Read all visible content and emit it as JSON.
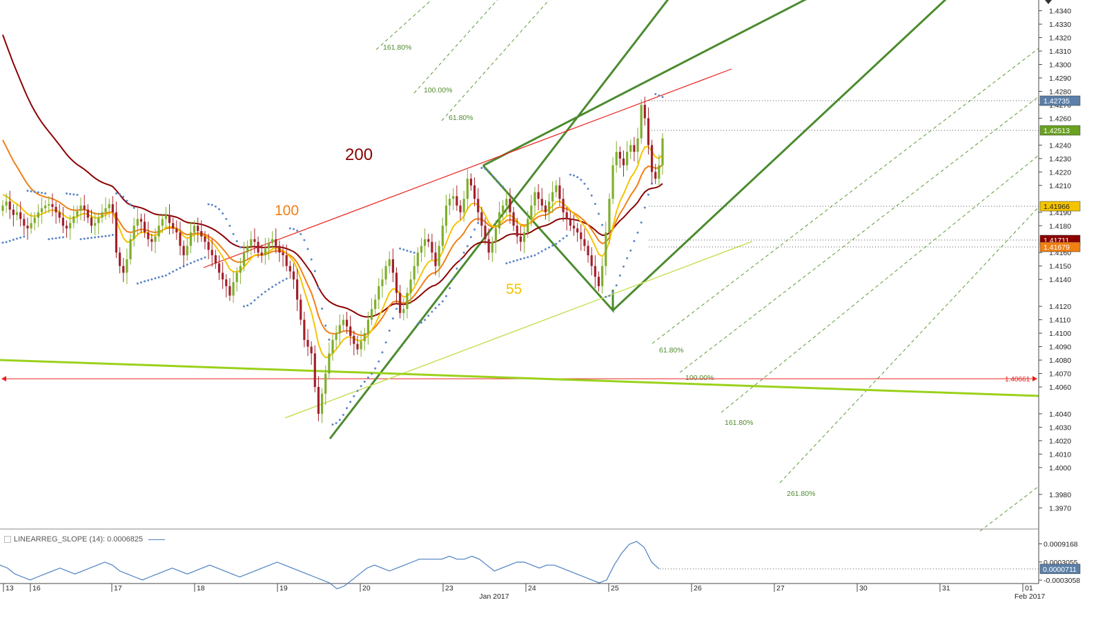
{
  "chart_data": {
    "type": "candlestick",
    "title": "",
    "x_axis": {
      "tick_labels": [
        "13",
        "16",
        "17",
        "18",
        "19",
        "20",
        "23",
        "24",
        "25",
        "26",
        "27",
        "30",
        "31",
        "01"
      ],
      "month_labels": [
        "Jan 2017",
        "Feb 2017"
      ]
    },
    "y_axis": {
      "range": [
        1.3964,
        1.4348
      ],
      "tick_labels": [
        "1.4340",
        "1.4330",
        "1.4320",
        "1.4310",
        "1.4300",
        "1.4290",
        "1.4280",
        "1.4270",
        "1.4260",
        "1.4240",
        "1.4230",
        "1.4220",
        "1.4210",
        "1.4190",
        "1.4180",
        "1.4160",
        "1.4150",
        "1.4140",
        "1.4120",
        "1.4110",
        "1.4100",
        "1.4090",
        "1.4080",
        "1.4070",
        "1.4060",
        "1.4040",
        "1.4030",
        "1.4020",
        "1.4010",
        "1.4000",
        "1.3980",
        "1.3970"
      ]
    },
    "price_badges": [
      {
        "label": "1.42735",
        "value": 1.42735,
        "color": "#5b7fa8"
      },
      {
        "label": "1.42513",
        "value": 1.42513,
        "color": "#6aa121"
      },
      {
        "label": "1.41966",
        "value": 1.41966,
        "color": "#f5c400"
      },
      {
        "label": "1.41711",
        "value": 1.41711,
        "color": "#8b0000"
      },
      {
        "label": "1.41679",
        "value": 1.41679,
        "color": "#f07f14"
      }
    ],
    "horizontal_line": {
      "label": "1.40661",
      "value": 1.40661,
      "color": "#e8201c"
    },
    "moving_average_labels": [
      {
        "text": "200",
        "period": 200,
        "color": "#8b0000"
      },
      {
        "text": "100",
        "period": 100,
        "color": "#f07f14"
      },
      {
        "text": "55",
        "period": 55,
        "color": "#f5c400"
      }
    ],
    "fibonacci_labels": [
      "161.80%",
      "100.00%",
      "61.80%",
      "61.80%",
      "100.00%",
      "161.80%",
      "261.80%"
    ],
    "candle_closes": [
      1.4195,
      1.4198,
      1.4192,
      1.4188,
      1.419,
      1.4185,
      1.418,
      1.4178,
      1.4182,
      1.4186,
      1.419,
      1.4193,
      1.4195,
      1.4196,
      1.4194,
      1.419,
      1.4186,
      1.418,
      1.4178,
      1.4182,
      1.4187,
      1.4191,
      1.4195,
      1.4192,
      1.4186,
      1.418,
      1.4182,
      1.4186,
      1.419,
      1.4193,
      1.4196,
      1.419,
      1.416,
      1.415,
      1.4145,
      1.4155,
      1.417,
      1.418,
      1.4185,
      1.4183,
      1.4175,
      1.417,
      1.4168,
      1.4172,
      1.418,
      1.4185,
      1.4188,
      1.4182,
      1.4178,
      1.4175,
      1.4165,
      1.4158,
      1.4165,
      1.4175,
      1.418,
      1.4176,
      1.4172,
      1.4168,
      1.4162,
      1.4158,
      1.4152,
      1.4145,
      1.414,
      1.4135,
      1.4128,
      1.4138,
      1.4145,
      1.415,
      1.416,
      1.4165,
      1.417,
      1.4168,
      1.416,
      1.4158,
      1.4163,
      1.4167,
      1.417,
      1.4165,
      1.416,
      1.4158,
      1.415,
      1.4146,
      1.414,
      1.4125,
      1.411,
      1.4095,
      1.409,
      1.4085,
      1.406,
      1.404,
      1.4055,
      1.407,
      1.4085,
      1.4095,
      1.41,
      1.4106,
      1.411,
      1.4105,
      1.4098,
      1.4092,
      1.4088,
      1.4094,
      1.41,
      1.411,
      1.4118,
      1.4125,
      1.4135,
      1.414,
      1.415,
      1.4155,
      1.4145,
      1.413,
      1.4115,
      1.4118,
      1.413,
      1.414,
      1.415,
      1.416,
      1.4165,
      1.417,
      1.4168,
      1.416,
      1.415,
      1.4165,
      1.418,
      1.4195,
      1.42,
      1.4202,
      1.4195,
      1.419,
      1.42,
      1.4215,
      1.421,
      1.42,
      1.419,
      1.418,
      1.417,
      1.416,
      1.4168,
      1.4178,
      1.419,
      1.4195,
      1.42,
      1.419,
      1.418,
      1.4172,
      1.4168,
      1.4175,
      1.4185,
      1.4195,
      1.4205,
      1.42,
      1.4195,
      1.419,
      1.4198,
      1.4205,
      1.421,
      1.42,
      1.419,
      1.4185,
      1.418,
      1.4178,
      1.4175,
      1.417,
      1.4165,
      1.4158,
      1.415,
      1.4142,
      1.4135,
      1.415,
      1.4175,
      1.42,
      1.4225,
      1.4235,
      1.423,
      1.4225,
      1.4235,
      1.424,
      1.4235,
      1.4245,
      1.427,
      1.426,
      1.424,
      1.422,
      1.4215,
      1.4225,
      1.4245
    ],
    "indicator": {
      "name": "LINEARREG_SLOPE (14)",
      "value_label": "0.0006825",
      "legend_text": "LINEARREG_SLOPE (14): 0.0006825",
      "tick_labels": [
        "0.0009168",
        "0.0003055",
        "-0.0003058"
      ],
      "badge": "0.0000711",
      "values": [
        0.0002,
        0.0001,
        -0.0001,
        -0.0002,
        -0.0003,
        -0.0002,
        -0.0001,
        0.0,
        0.0001,
        0.0,
        -0.0001,
        0.0,
        0.0001,
        0.0002,
        0.0003,
        0.0002,
        0.0,
        -0.0001,
        -0.0002,
        -0.0003,
        -0.0002,
        -0.0001,
        0.0,
        0.0001,
        0.0,
        -0.0001,
        0.0,
        0.0001,
        0.0002,
        0.0001,
        0.0,
        -0.0001,
        -0.0002,
        -0.0001,
        0.0,
        0.0001,
        0.0002,
        0.0003,
        0.0002,
        0.0001,
        0.0,
        -0.0001,
        -0.0002,
        -0.0003,
        -0.0004,
        -0.0006,
        -0.0005,
        -0.0003,
        -0.0001,
        0.0001,
        0.0002,
        0.0001,
        0.0,
        0.0001,
        0.0002,
        0.0003,
        0.0004,
        0.0004,
        0.0004,
        0.0004,
        0.0005,
        0.0004,
        0.0004,
        0.0005,
        0.0004,
        0.0002,
        0.0,
        0.0001,
        0.0002,
        0.0003,
        0.0003,
        0.0002,
        0.0001,
        0.0002,
        0.0002,
        0.0001,
        0.0,
        -0.0001,
        -0.0002,
        -0.0003,
        -0.0004,
        -0.0003,
        0.0002,
        0.0006,
        0.0009,
        0.001,
        0.0008,
        0.0003,
        7.11e-05
      ]
    }
  }
}
